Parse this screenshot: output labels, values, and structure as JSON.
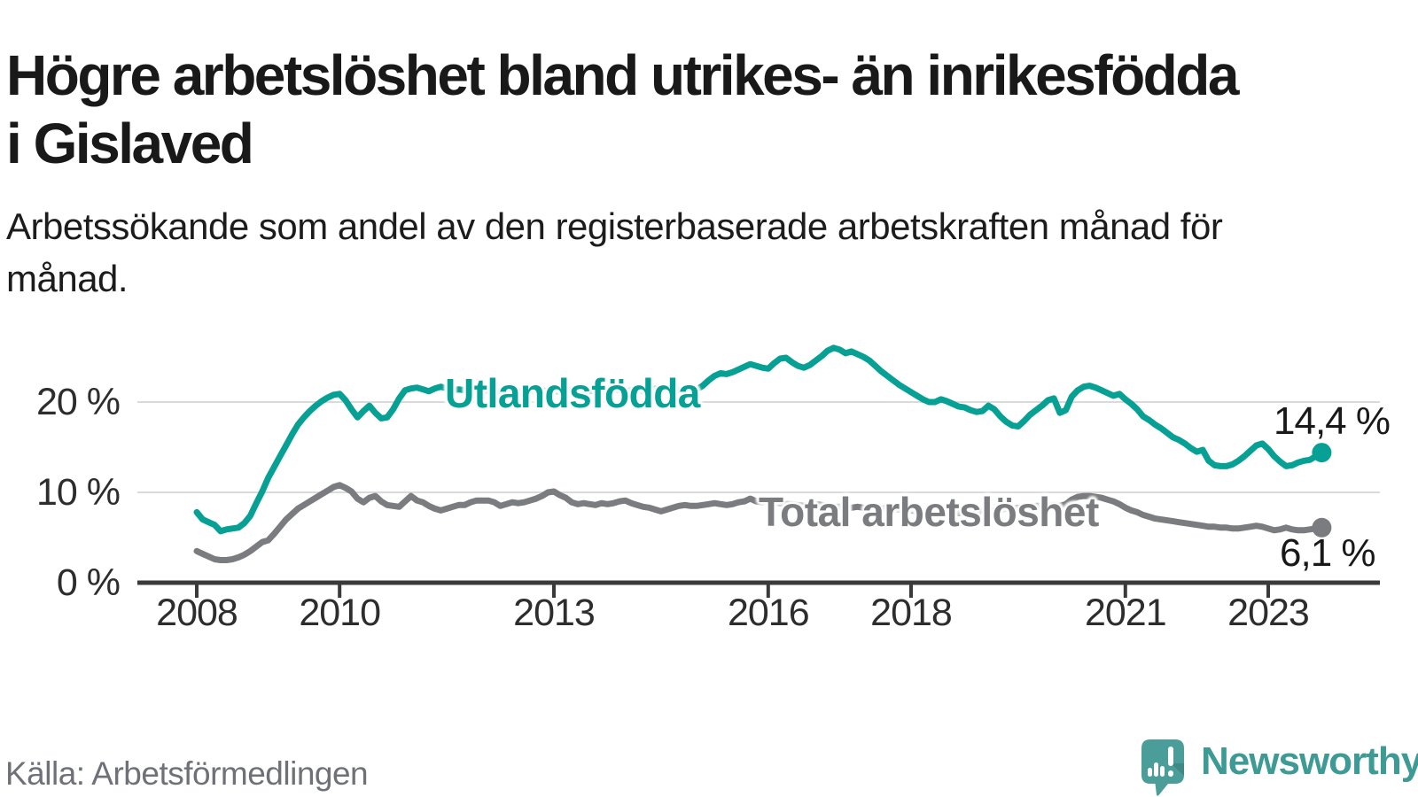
{
  "header": {
    "title": "Högre arbetslöshet bland utrikes- än inrikesfödda i Gislaved",
    "subtitle": "Arbetssökande som andel av den registerbaserade arbetskraften månad för månad."
  },
  "chart_data": {
    "type": "line",
    "title": "Högre arbetslöshet bland utrikes- än inrikesfödda i Gislaved",
    "subtitle": "Arbetssökande som andel av den registerbaserade arbetskraften månad för månad.",
    "unit": "percent",
    "x_start": 2008.0,
    "points_per_year": 12,
    "xlim": [
      2007.2,
      2024.6
    ],
    "ylim": [
      0,
      27.5
    ],
    "grid": "horizontal",
    "grid_color": "#dadada",
    "axis_color": "#3a3a3a",
    "y_gridlines": [
      10,
      20
    ],
    "y_ticks": [
      {
        "value": 0,
        "label": "0 %"
      },
      {
        "value": 10,
        "label": "10 %"
      },
      {
        "value": 20,
        "label": "20 %"
      }
    ],
    "x_ticks": [
      {
        "value": 2008,
        "label": "2008"
      },
      {
        "value": 2010,
        "label": "2010"
      },
      {
        "value": 2013,
        "label": "2013"
      },
      {
        "value": 2016,
        "label": "2016"
      },
      {
        "value": 2018,
        "label": "2018"
      },
      {
        "value": 2021,
        "label": "2021"
      },
      {
        "value": 2023,
        "label": "2023"
      }
    ],
    "legend_position": "inline-labels",
    "series": [
      {
        "name": "Utlandsfödda",
        "color": "#07a094",
        "end_label": "14,4 %",
        "end_value": 14.4,
        "values": [
          7.8,
          7.0,
          6.7,
          6.4,
          5.7,
          5.9,
          6.0,
          6.1,
          6.6,
          7.4,
          8.8,
          10.1,
          11.6,
          12.8,
          14.0,
          15.2,
          16.4,
          17.5,
          18.3,
          19.0,
          19.6,
          20.1,
          20.5,
          20.8,
          20.9,
          20.2,
          19.2,
          18.3,
          19.0,
          19.6,
          18.8,
          18.2,
          18.3,
          19.2,
          20.4,
          21.3,
          21.5,
          21.6,
          21.4,
          21.2,
          21.5,
          21.7,
          21.5,
          21.3,
          21.4,
          21.3,
          21.4,
          21.4,
          21.2,
          21.3,
          21.1,
          21.2,
          21.4,
          21.2,
          21.1,
          21.3,
          21.2,
          21.4,
          21.3,
          21.2,
          21.3,
          21.1,
          21.2,
          21.4,
          21.3,
          21.1,
          21.2,
          21.3,
          21.1,
          21.2,
          21.4,
          21.3,
          21.2,
          21.3,
          21.4,
          21.2,
          21.3,
          21.5,
          21.3,
          21.4,
          21.2,
          21.3,
          21.5,
          21.4,
          21.4,
          21.8,
          22.4,
          22.9,
          23.2,
          23.1,
          23.3,
          23.6,
          23.9,
          24.2,
          24.0,
          23.8,
          23.7,
          24.3,
          24.8,
          24.9,
          24.4,
          24.0,
          23.8,
          24.1,
          24.6,
          25.1,
          25.7,
          26.0,
          25.8,
          25.4,
          25.6,
          25.3,
          25.0,
          24.6,
          24.0,
          23.4,
          22.9,
          22.4,
          21.9,
          21.5,
          21.1,
          20.7,
          20.3,
          20.0,
          20.0,
          20.3,
          20.1,
          19.8,
          19.5,
          19.4,
          19.1,
          18.9,
          19.0,
          19.6,
          19.2,
          18.4,
          17.8,
          17.4,
          17.3,
          17.9,
          18.6,
          19.1,
          19.6,
          20.2,
          20.4,
          18.8,
          19.1,
          20.6,
          21.3,
          21.7,
          21.8,
          21.6,
          21.3,
          21.0,
          20.7,
          20.9,
          20.3,
          19.8,
          19.2,
          18.4,
          18.0,
          17.5,
          17.1,
          16.6,
          16.1,
          15.8,
          15.4,
          14.9,
          14.5,
          14.7,
          13.5,
          13.0,
          12.9,
          12.9,
          13.1,
          13.5,
          14.0,
          14.6,
          15.2,
          15.4,
          14.8,
          14.0,
          13.4,
          12.9,
          13.0,
          13.3,
          13.5,
          13.6,
          14.0,
          14.4
        ]
      },
      {
        "name": "Total arbetslöshet",
        "color": "#7b7c80",
        "end_label": "6,1 %",
        "end_value": 6.1,
        "values": [
          3.5,
          3.2,
          2.9,
          2.6,
          2.5,
          2.5,
          2.6,
          2.8,
          3.1,
          3.5,
          4.0,
          4.5,
          4.7,
          5.4,
          6.2,
          7.0,
          7.6,
          8.2,
          8.6,
          9.0,
          9.4,
          9.8,
          10.2,
          10.6,
          10.8,
          10.5,
          10.1,
          9.3,
          8.9,
          9.4,
          9.6,
          9.0,
          8.6,
          8.5,
          8.4,
          9.0,
          9.6,
          9.1,
          8.9,
          8.5,
          8.2,
          8.0,
          8.2,
          8.4,
          8.6,
          8.6,
          8.9,
          9.1,
          9.1,
          9.1,
          8.9,
          8.5,
          8.7,
          8.9,
          8.8,
          8.9,
          9.1,
          9.3,
          9.6,
          10.0,
          10.1,
          9.7,
          9.4,
          8.9,
          8.7,
          8.8,
          8.7,
          8.6,
          8.8,
          8.7,
          8.8,
          9.0,
          9.1,
          8.8,
          8.6,
          8.4,
          8.3,
          8.1,
          7.9,
          8.1,
          8.3,
          8.5,
          8.6,
          8.5,
          8.5,
          8.6,
          8.7,
          8.8,
          8.7,
          8.6,
          8.7,
          8.9,
          9.0,
          9.3,
          9.0,
          8.9,
          9.0,
          8.9,
          8.8,
          8.7,
          8.7,
          8.6,
          8.5,
          8.6,
          8.7,
          8.6,
          8.5,
          8.4,
          8.4,
          8.3,
          8.3,
          8.4,
          8.3,
          8.2,
          8.1,
          8.2,
          8.3,
          8.2,
          8.1,
          8.0,
          8.0,
          7.9,
          7.9,
          7.8,
          7.8,
          7.9,
          7.8,
          7.7,
          7.7,
          7.8,
          7.8,
          7.9,
          7.9,
          8.0,
          8.0,
          8.1,
          8.2,
          8.2,
          8.3,
          8.4,
          8.4,
          8.5,
          8.5,
          8.6,
          8.6,
          8.5,
          8.7,
          9.2,
          9.5,
          9.6,
          9.6,
          9.5,
          9.4,
          9.2,
          9.0,
          8.7,
          8.3,
          8.0,
          7.8,
          7.5,
          7.3,
          7.1,
          7.0,
          6.9,
          6.8,
          6.7,
          6.6,
          6.5,
          6.4,
          6.3,
          6.2,
          6.2,
          6.1,
          6.1,
          6.0,
          6.0,
          6.1,
          6.2,
          6.3,
          6.2,
          6.0,
          5.8,
          5.9,
          6.1,
          5.9,
          5.8,
          5.8,
          5.9,
          6.0,
          6.1
        ]
      }
    ]
  },
  "footer": {
    "source": "Källa: Arbetsförmedlingen",
    "brand": "Newsworthy",
    "brand_color": "#3d9a94",
    "logo_bubble_color": "#4a9d98"
  }
}
